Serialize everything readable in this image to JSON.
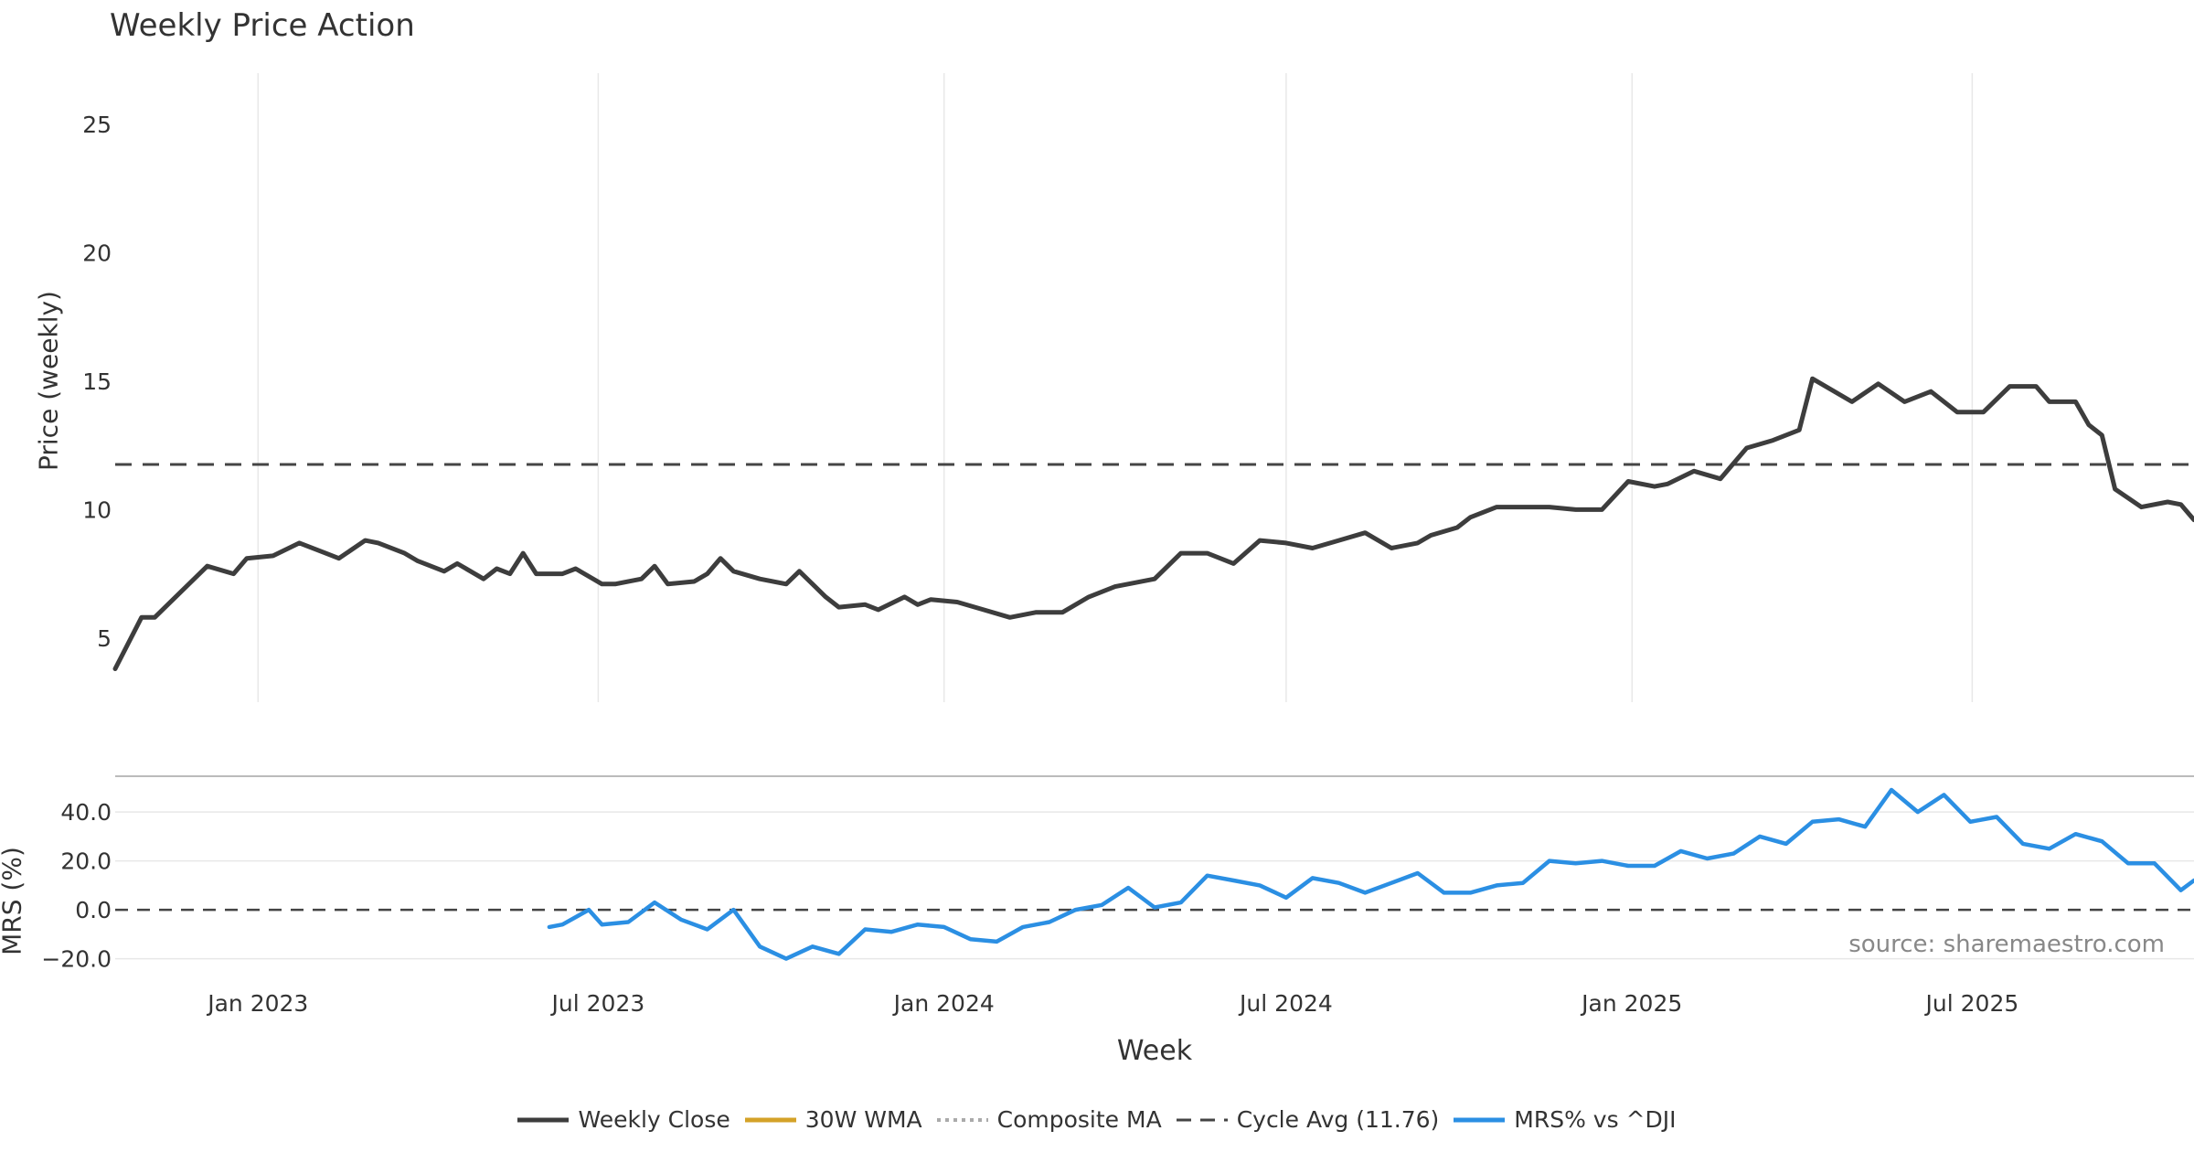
{
  "title": "Weekly Price Action",
  "source_note": "source: sharemaestro.com",
  "colors": {
    "close": "#3d3d3d",
    "wma": "#d4a228",
    "composite": "#aaaaaa",
    "cycle": "#444444",
    "mrs": "#2b8fe3",
    "buy": "#1a9c1a",
    "sell": "#cc1111",
    "grid": "#e8e8e8"
  },
  "chart_data": [
    {
      "type": "line",
      "panel": "price",
      "title": "Weekly Price Action",
      "xlabel": "",
      "ylabel": "Price (weekly)",
      "ylim": [
        2.5,
        27
      ],
      "y_ticks": [
        5,
        10,
        15,
        20,
        25
      ],
      "x_range": [
        "2022-10-17",
        "2025-10-27"
      ],
      "x_ticks": [
        {
          "date": "2023-01-01",
          "label": "Jan 2023"
        },
        {
          "date": "2023-07-01",
          "label": "Jul 2023"
        },
        {
          "date": "2024-01-01",
          "label": "Jan 2024"
        },
        {
          "date": "2024-07-01",
          "label": "Jul 2024"
        },
        {
          "date": "2025-01-01",
          "label": "Jan 2025"
        },
        {
          "date": "2025-07-01",
          "label": "Jul 2025"
        }
      ],
      "grid": "vertical",
      "reference_line": {
        "name": "Cycle Avg (11.76)",
        "value": 11.76
      },
      "series": [
        {
          "name": "Weekly Close",
          "style": "solid",
          "color_key": "close",
          "points": [
            [
              "2022-10-17",
              3.8
            ],
            [
              "2022-10-31",
              5.8
            ],
            [
              "2022-11-07",
              5.8
            ],
            [
              "2022-11-21",
              6.8
            ],
            [
              "2022-12-05",
              7.8
            ],
            [
              "2022-12-19",
              7.5
            ],
            [
              "2022-12-26",
              8.1
            ],
            [
              "2023-01-09",
              8.2
            ],
            [
              "2023-01-23",
              8.7
            ],
            [
              "2023-02-06",
              8.3
            ],
            [
              "2023-02-13",
              8.1
            ],
            [
              "2023-02-27",
              8.8
            ],
            [
              "2023-03-06",
              8.7
            ],
            [
              "2023-03-20",
              8.3
            ],
            [
              "2023-03-27",
              8.0
            ],
            [
              "2023-04-10",
              7.6
            ],
            [
              "2023-04-17",
              7.9
            ],
            [
              "2023-05-01",
              7.3
            ],
            [
              "2023-05-08",
              7.7
            ],
            [
              "2023-05-15",
              7.5
            ],
            [
              "2023-05-22",
              8.3
            ],
            [
              "2023-05-29",
              7.5
            ],
            [
              "2023-06-12",
              7.5
            ],
            [
              "2023-06-19",
              7.7
            ],
            [
              "2023-07-03",
              7.1
            ],
            [
              "2023-07-10",
              7.1
            ],
            [
              "2023-07-24",
              7.3
            ],
            [
              "2023-07-31",
              7.8
            ],
            [
              "2023-08-07",
              7.1
            ],
            [
              "2023-08-21",
              7.2
            ],
            [
              "2023-08-28",
              7.5
            ],
            [
              "2023-09-04",
              8.1
            ],
            [
              "2023-09-11",
              7.6
            ],
            [
              "2023-09-25",
              7.3
            ],
            [
              "2023-10-09",
              7.1
            ],
            [
              "2023-10-16",
              7.6
            ],
            [
              "2023-10-30",
              6.6
            ],
            [
              "2023-11-06",
              6.2
            ],
            [
              "2023-11-20",
              6.3
            ],
            [
              "2023-11-27",
              6.1
            ],
            [
              "2023-12-11",
              6.6
            ],
            [
              "2023-12-18",
              6.3
            ],
            [
              "2023-12-25",
              6.5
            ],
            [
              "2024-01-08",
              6.4
            ],
            [
              "2024-01-22",
              6.1
            ],
            [
              "2024-02-05",
              5.8
            ],
            [
              "2024-02-19",
              6.0
            ],
            [
              "2024-03-04",
              6.0
            ],
            [
              "2024-03-18",
              6.6
            ],
            [
              "2024-04-01",
              7.0
            ],
            [
              "2024-04-22",
              7.3
            ],
            [
              "2024-05-06",
              8.3
            ],
            [
              "2024-05-20",
              8.3
            ],
            [
              "2024-06-03",
              7.9
            ],
            [
              "2024-06-17",
              8.8
            ],
            [
              "2024-07-01",
              8.7
            ],
            [
              "2024-07-15",
              8.5
            ],
            [
              "2024-07-29",
              8.8
            ],
            [
              "2024-08-12",
              9.1
            ],
            [
              "2024-08-26",
              8.5
            ],
            [
              "2024-09-09",
              8.7
            ],
            [
              "2024-09-16",
              9.0
            ],
            [
              "2024-09-30",
              9.3
            ],
            [
              "2024-10-07",
              9.7
            ],
            [
              "2024-10-21",
              10.1
            ],
            [
              "2024-11-04",
              10.1
            ],
            [
              "2024-11-18",
              10.1
            ],
            [
              "2024-12-02",
              10.0
            ],
            [
              "2024-12-16",
              10.0
            ],
            [
              "2024-12-30",
              11.1
            ],
            [
              "2025-01-13",
              10.9
            ],
            [
              "2025-01-20",
              11.0
            ],
            [
              "2025-02-03",
              11.5
            ],
            [
              "2025-02-17",
              11.2
            ],
            [
              "2025-03-03",
              12.4
            ],
            [
              "2025-03-17",
              12.7
            ],
            [
              "2025-03-31",
              13.1
            ],
            [
              "2025-04-07",
              15.1
            ],
            [
              "2025-04-28",
              14.2
            ],
            [
              "2025-05-12",
              14.9
            ],
            [
              "2025-05-26",
              14.2
            ],
            [
              "2025-06-09",
              14.6
            ],
            [
              "2025-06-23",
              13.8
            ],
            [
              "2025-07-07",
              13.8
            ],
            [
              "2025-07-21",
              14.8
            ],
            [
              "2025-08-04",
              14.8
            ],
            [
              "2025-08-11",
              14.2
            ],
            [
              "2025-08-25",
              14.2
            ],
            [
              "2025-09-01",
              13.3
            ],
            [
              "2025-09-08",
              12.9
            ],
            [
              "2025-09-15",
              10.8
            ],
            [
              "2025-09-29",
              10.1
            ],
            [
              "2025-10-13",
              10.3
            ],
            [
              "2025-10-20",
              10.2
            ],
            [
              "2025-10-27",
              9.6
            ]
          ]
        }
      ]
    },
    {
      "type": "line",
      "panel": "mrs",
      "xlabel": "Week",
      "ylabel": "MRS (%)",
      "ylim": [
        -25,
        55
      ],
      "y_ticks": [
        -20,
        0,
        20,
        40
      ],
      "y_tick_labels": [
        "−20.0",
        "0.0",
        "20.0",
        "40.0"
      ],
      "reference_line": {
        "value": 0
      },
      "series": [
        {
          "name": "MRS% vs ^DJI",
          "color_key": "mrs",
          "points": [
            [
              "2023-06-05",
              -7
            ],
            [
              "2023-06-12",
              -6
            ],
            [
              "2023-06-26",
              0
            ],
            [
              "2023-07-03",
              -6
            ],
            [
              "2023-07-17",
              -5
            ],
            [
              "2023-07-31",
              3
            ],
            [
              "2023-08-14",
              -4
            ],
            [
              "2023-08-28",
              -8
            ],
            [
              "2023-09-11",
              0
            ],
            [
              "2023-09-25",
              -15
            ],
            [
              "2023-10-09",
              -20
            ],
            [
              "2023-10-23",
              -15
            ],
            [
              "2023-11-06",
              -18
            ],
            [
              "2023-11-20",
              -8
            ],
            [
              "2023-12-04",
              -9
            ],
            [
              "2023-12-18",
              -6
            ],
            [
              "2024-01-01",
              -7
            ],
            [
              "2024-01-15",
              -12
            ],
            [
              "2024-01-29",
              -13
            ],
            [
              "2024-02-12",
              -7
            ],
            [
              "2024-02-26",
              -5
            ],
            [
              "2024-03-11",
              0
            ],
            [
              "2024-03-25",
              2
            ],
            [
              "2024-04-08",
              9
            ],
            [
              "2024-04-22",
              1
            ],
            [
              "2024-05-06",
              3
            ],
            [
              "2024-05-20",
              14
            ],
            [
              "2024-06-03",
              12
            ],
            [
              "2024-06-17",
              10
            ],
            [
              "2024-07-01",
              5
            ],
            [
              "2024-07-15",
              13
            ],
            [
              "2024-07-29",
              11
            ],
            [
              "2024-08-12",
              7
            ],
            [
              "2024-08-26",
              11
            ],
            [
              "2024-09-09",
              15
            ],
            [
              "2024-09-23",
              7
            ],
            [
              "2024-10-07",
              7
            ],
            [
              "2024-10-21",
              10
            ],
            [
              "2024-11-04",
              11
            ],
            [
              "2024-11-18",
              20
            ],
            [
              "2024-12-02",
              19
            ],
            [
              "2024-12-16",
              20
            ],
            [
              "2024-12-30",
              18
            ],
            [
              "2025-01-13",
              18
            ],
            [
              "2025-01-27",
              24
            ],
            [
              "2025-02-10",
              21
            ],
            [
              "2025-02-24",
              23
            ],
            [
              "2025-03-10",
              30
            ],
            [
              "2025-03-24",
              27
            ],
            [
              "2025-04-07",
              36
            ],
            [
              "2025-04-21",
              37
            ],
            [
              "2025-05-05",
              34
            ],
            [
              "2025-05-19",
              49
            ],
            [
              "2025-06-02",
              40
            ],
            [
              "2025-06-16",
              47
            ],
            [
              "2025-06-30",
              36
            ],
            [
              "2025-07-14",
              38
            ],
            [
              "2025-07-28",
              27
            ],
            [
              "2025-08-11",
              25
            ],
            [
              "2025-08-25",
              31
            ],
            [
              "2025-09-08",
              28
            ],
            [
              "2025-09-22",
              19
            ],
            [
              "2025-10-06",
              19
            ],
            [
              "2025-10-20",
              8
            ],
            [
              "2025-10-27",
              12
            ]
          ]
        }
      ]
    }
  ],
  "legend": {
    "close": "Weekly Close",
    "wma": "30W WMA",
    "composite": "Composite MA",
    "cycle": "Cycle Avg (11.76)",
    "mrs": "MRS% vs ^DJI"
  }
}
